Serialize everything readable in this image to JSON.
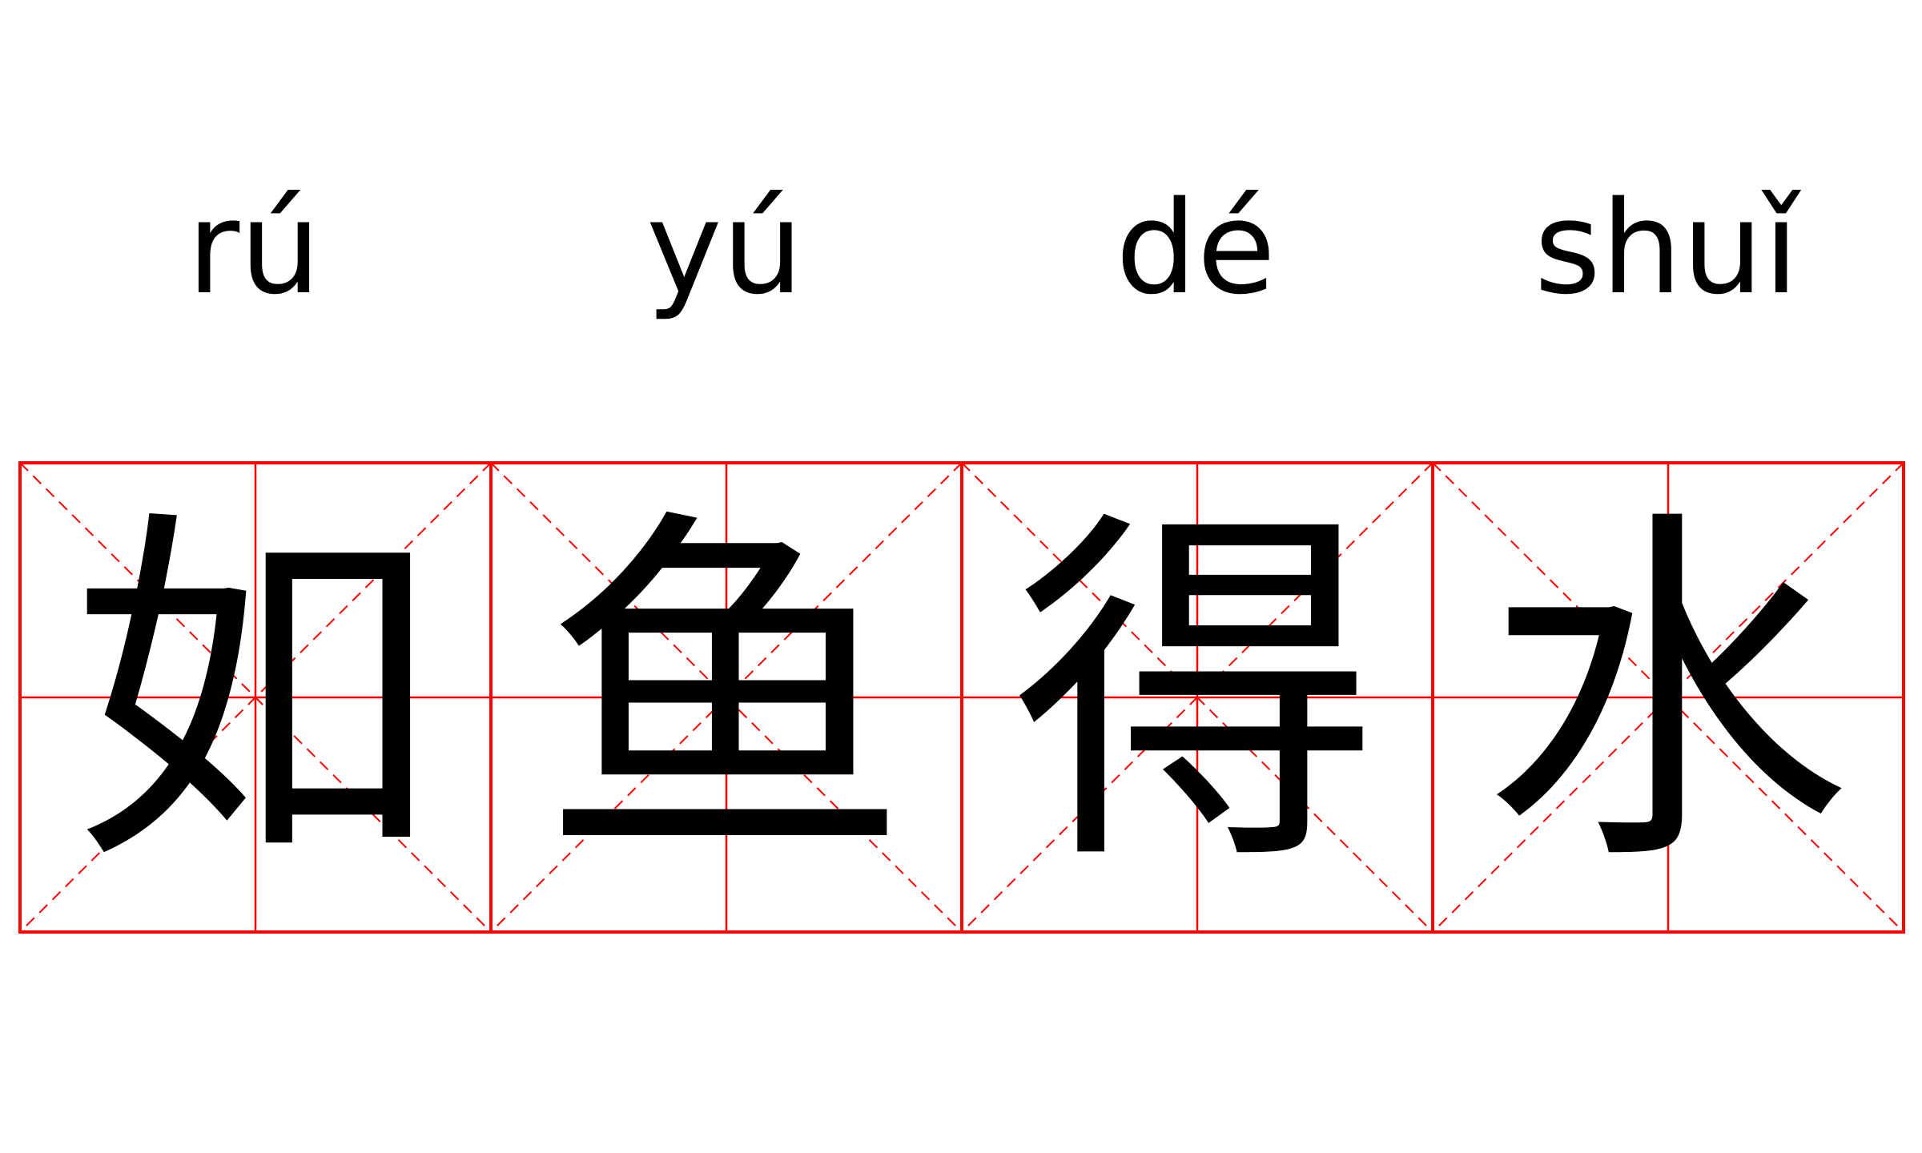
{
  "pinyin": [
    "rú",
    "yú",
    "dé",
    "shuǐ"
  ],
  "characters": [
    "如",
    "鱼",
    "得",
    "水"
  ],
  "colors": {
    "grid": "#ff0000",
    "text": "#000000",
    "background": "#ffffff"
  }
}
